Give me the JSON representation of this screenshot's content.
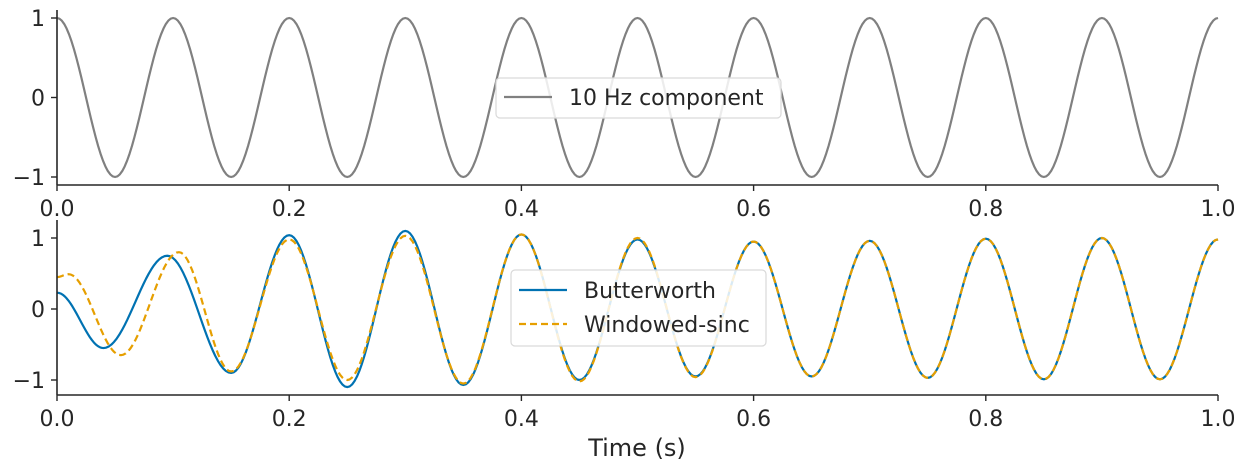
{
  "colors": {
    "top_series": "#808080",
    "butterworth": "#0072b2",
    "windowed_sinc": "#e69f00",
    "axis": "#262626",
    "legend_border": "#d9d9d9"
  },
  "chart_data": [
    {
      "type": "line",
      "title": "",
      "xlabel": "",
      "ylabel": "",
      "xlim": [
        0,
        1
      ],
      "ylim": [
        -1.1,
        1.1
      ],
      "xticks": [
        0.0,
        0.2,
        0.4,
        0.6,
        0.8,
        1.0
      ],
      "xtick_labels": [
        "0.0",
        "0.2",
        "0.4",
        "0.6",
        "0.8",
        "1.0"
      ],
      "yticks": [
        -1,
        0,
        1
      ],
      "ytick_labels": [
        "−1",
        "0",
        "1"
      ],
      "legend_position": "center",
      "grid": false,
      "series": [
        {
          "name": "10 Hz component",
          "style": "solid",
          "color": "#808080",
          "x": [
            0.0,
            0.05,
            0.1,
            0.15,
            0.2,
            0.25,
            0.3,
            0.35,
            0.4,
            0.45,
            0.5,
            0.55,
            0.6,
            0.65,
            0.7,
            0.75,
            0.8,
            0.85,
            0.9,
            0.95,
            1.0
          ],
          "y": [
            1.0,
            -1.0,
            1.0,
            -1.0,
            1.0,
            -1.0,
            1.0,
            -1.0,
            1.0,
            -1.0,
            1.0,
            -1.0,
            1.0,
            -1.0,
            1.0,
            -1.0,
            1.0,
            -1.0,
            1.0,
            -1.0,
            1.0
          ]
        }
      ]
    },
    {
      "type": "line",
      "title": "",
      "xlabel": "Time (s)",
      "ylabel": "",
      "xlim": [
        0,
        1
      ],
      "ylim": [
        -1.22,
        1.2
      ],
      "xticks": [
        0.0,
        0.2,
        0.4,
        0.6,
        0.8,
        1.0
      ],
      "xtick_labels": [
        "0.0",
        "0.2",
        "0.4",
        "0.6",
        "0.8",
        "1.0"
      ],
      "yticks": [
        -1,
        0,
        1
      ],
      "ytick_labels": [
        "−1",
        "0",
        "1"
      ],
      "legend_position": "center",
      "grid": false,
      "series": [
        {
          "name": "Butterworth",
          "style": "solid",
          "color": "#0072b2",
          "x": [
            0.0,
            0.04,
            0.095,
            0.15,
            0.2,
            0.25,
            0.3,
            0.35,
            0.4,
            0.45,
            0.5,
            0.55,
            0.6,
            0.65,
            0.7,
            0.75,
            0.8,
            0.85,
            0.9,
            0.95,
            1.0
          ],
          "y": [
            0.23,
            -0.55,
            0.75,
            -0.9,
            1.04,
            -1.1,
            1.1,
            -1.07,
            1.05,
            -1.0,
            0.98,
            -0.95,
            0.95,
            -0.95,
            0.96,
            -0.97,
            0.99,
            -0.99,
            1.0,
            -0.99,
            0.98
          ]
        },
        {
          "name": "Windowed-sinc",
          "style": "dashed",
          "color": "#e69f00",
          "x": [
            0.0,
            0.01,
            0.055,
            0.105,
            0.15,
            0.2,
            0.25,
            0.3,
            0.35,
            0.4,
            0.45,
            0.5,
            0.55,
            0.6,
            0.65,
            0.7,
            0.75,
            0.8,
            0.85,
            0.9,
            0.95,
            1.0
          ],
          "y": [
            0.45,
            0.49,
            -0.65,
            0.8,
            -0.88,
            0.98,
            -1.0,
            1.03,
            -1.05,
            1.05,
            -1.02,
            1.0,
            -0.96,
            0.95,
            -0.95,
            0.96,
            -0.97,
            0.99,
            -0.99,
            1.0,
            -0.99,
            0.98
          ]
        }
      ]
    }
  ]
}
